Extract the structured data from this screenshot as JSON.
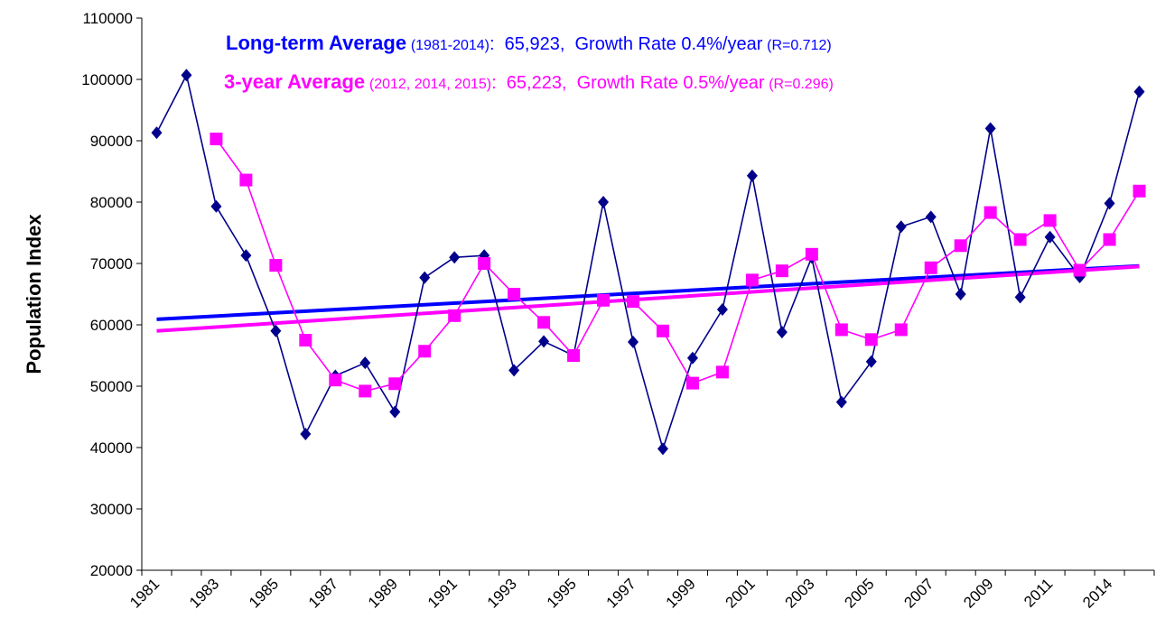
{
  "chart_data": {
    "type": "line",
    "y_label": "Population Index",
    "annotations": [
      [
        "Long-term Average",
        "(1981-2014)",
        ":  65,923,  Growth Rate 0.4%/year",
        "(R=0.712)"
      ],
      [
        "3-year Average",
        "(2012, 2014, 2015)",
        ":  65,223,  Growth Rate 0.5%/year",
        "(R=0.296)"
      ]
    ],
    "categories": [
      "1981",
      null,
      "1983",
      null,
      "1985",
      null,
      "1987",
      null,
      "1989",
      null,
      "1991",
      null,
      "1993",
      null,
      "1995",
      null,
      "1997",
      null,
      "1999",
      null,
      "2001",
      null,
      "2003",
      null,
      "2005",
      null,
      "2007",
      null,
      "2009",
      null,
      "2011",
      null,
      "2014",
      null
    ],
    "series": [
      {
        "color": "#00008b",
        "marker": "diamond",
        "trend_color": "#0000ff",
        "trend": [
          60900,
          69600
        ],
        "values": [
          91300,
          100700,
          79300,
          71300,
          59000,
          42200,
          51700,
          53800,
          45800,
          67700,
          71000,
          71300,
          52600,
          57300,
          55000,
          80000,
          57200,
          39800,
          54600,
          62500,
          84300,
          58800,
          71000,
          47400,
          54000,
          76000,
          77600,
          65000,
          92000,
          64500,
          74300,
          67800,
          79800,
          98000
        ]
      },
      {
        "color": "#ff00ff",
        "marker": "square",
        "trend_color": "#ff00ff",
        "trend": [
          59000,
          69500
        ],
        "values": [
          null,
          null,
          90300,
          83600,
          69700,
          57500,
          51000,
          49200,
          50400,
          55700,
          61500,
          70000,
          65000,
          60400,
          55000,
          64000,
          63800,
          59000,
          50500,
          52300,
          67300,
          68800,
          71500,
          59200,
          57600,
          59200,
          69300,
          72900,
          78300,
          73900,
          77000,
          68900,
          73900,
          81800
        ]
      }
    ],
    "ylim": [
      20000,
      110000
    ],
    "yticks": [
      20000,
      30000,
      40000,
      50000,
      60000,
      70000,
      80000,
      90000,
      100000,
      110000
    ]
  }
}
